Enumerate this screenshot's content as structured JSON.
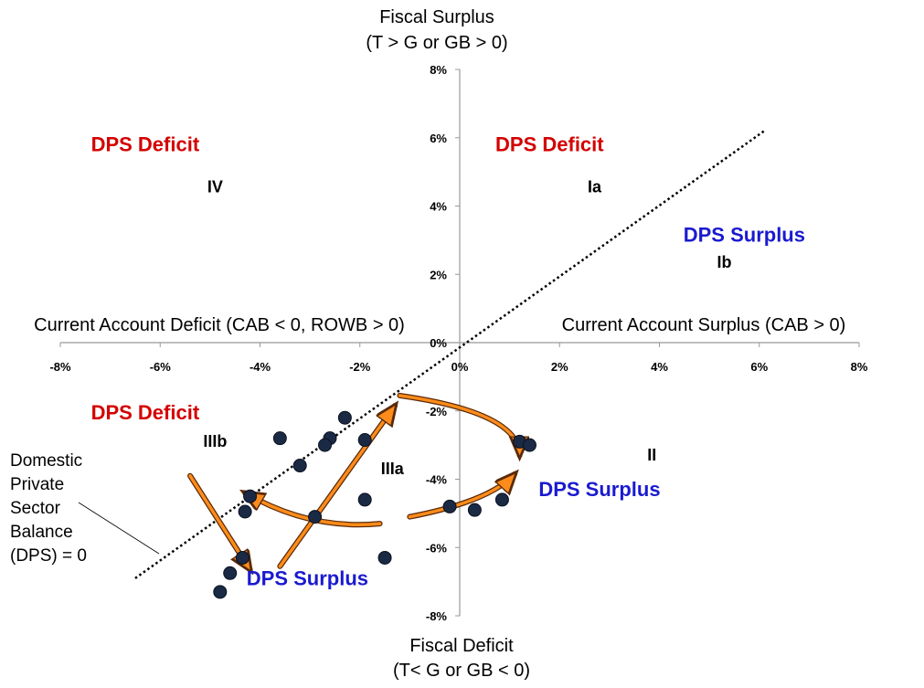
{
  "chart_data": {
    "type": "scatter",
    "title": "",
    "x_axis": {
      "range": [
        -8,
        8
      ],
      "ticks": [
        "-8%",
        "-6%",
        "-4%",
        "-2%",
        "0%",
        "2%",
        "4%",
        "6%",
        "8%"
      ],
      "label_left": "Current Account Deficit (CAB < 0, ROWB > 0)",
      "label_right": "Current Account Surplus (CAB > 0)"
    },
    "y_axis": {
      "range": [
        -8,
        8
      ],
      "ticks": [
        "8%",
        "6%",
        "4%",
        "2%",
        "0%",
        "-2%",
        "-4%",
        "-6%",
        "-8%"
      ],
      "label_top_line1": "Fiscal Surplus",
      "label_top_line2": "(T > G or GB > 0)",
      "label_bottom_line1": "Fiscal Deficit",
      "label_bottom_line2": "(T< G or GB < 0)"
    },
    "dps_line": {
      "x": [
        -6.5,
        6.1
      ],
      "y": [
        -6.9,
        6.2
      ],
      "style": "dotted",
      "label_lines": [
        "Domestic",
        "Private",
        "Sector",
        "Balance",
        "(DPS) = 0"
      ]
    },
    "points": [
      {
        "x": -2.3,
        "y": -2.2
      },
      {
        "x": -3.6,
        "y": -2.8
      },
      {
        "x": -2.6,
        "y": -2.8
      },
      {
        "x": -2.7,
        "y": -3.0
      },
      {
        "x": -1.9,
        "y": -2.85
      },
      {
        "x": -3.2,
        "y": -3.6
      },
      {
        "x": -4.2,
        "y": -4.5
      },
      {
        "x": -4.3,
        "y": -4.95
      },
      {
        "x": -1.9,
        "y": -4.6
      },
      {
        "x": -2.9,
        "y": -5.1
      },
      {
        "x": -4.35,
        "y": -6.3
      },
      {
        "x": -4.6,
        "y": -6.75
      },
      {
        "x": -1.5,
        "y": -6.3
      },
      {
        "x": -4.8,
        "y": -7.3
      },
      {
        "x": 1.2,
        "y": -2.9
      },
      {
        "x": 1.4,
        "y": -3.0
      },
      {
        "x": -0.2,
        "y": -4.8
      },
      {
        "x": 0.3,
        "y": -4.9
      },
      {
        "x": 0.85,
        "y": -4.6
      }
    ],
    "regions": [
      {
        "label": "DPS Deficit",
        "color": "#d40000",
        "x": -6.3,
        "y": 5.6
      },
      {
        "label": "DPS Deficit",
        "color": "#d40000",
        "x": 1.8,
        "y": 5.6
      },
      {
        "label": "DPS Surplus",
        "color": "#1a1ad0",
        "x": 5.7,
        "y": 2.95
      },
      {
        "label": "DPS Deficit",
        "color": "#d40000",
        "x": -6.3,
        "y": -2.25
      },
      {
        "label": "DPS Surplus",
        "color": "#1a1ad0",
        "x": 2.8,
        "y": -4.5
      },
      {
        "label": "DPS Surplus",
        "color": "#1a1ad0",
        "x": -3.05,
        "y": -7.1
      }
    ],
    "quadrants": [
      {
        "label": "IV",
        "x": -4.9,
        "y": 4.4
      },
      {
        "label": "Ia",
        "x": 2.7,
        "y": 4.4
      },
      {
        "label": "Ib",
        "x": 5.3,
        "y": 2.2
      },
      {
        "label": "IIIb",
        "x": -4.9,
        "y": -3.05
      },
      {
        "label": "IIIa",
        "x": -1.35,
        "y": -3.85
      },
      {
        "label": "II",
        "x": 3.85,
        "y": -3.45
      }
    ],
    "arrows": [
      {
        "path": [
          [
            -5.4,
            -3.9
          ],
          [
            -4.2,
            -6.65
          ]
        ]
      },
      {
        "path": [
          [
            -3.6,
            -6.55
          ],
          [
            -1.3,
            -1.85
          ]
        ]
      },
      {
        "path": [
          [
            -1.6,
            -5.3
          ],
          [
            -3.0,
            -5.5
          ],
          [
            -4.3,
            -4.4
          ]
        ]
      },
      {
        "path": [
          [
            -1.2,
            -1.55
          ],
          [
            1.2,
            -2.05
          ],
          [
            1.2,
            -3.3
          ]
        ]
      },
      {
        "path": [
          [
            -1.0,
            -5.1
          ],
          [
            0.6,
            -4.65
          ],
          [
            1.1,
            -3.85
          ]
        ]
      }
    ],
    "colors": {
      "point": "#1b2a44",
      "arrow_fill": "#ff8c1a",
      "arrow_stroke": "#5a2a0a",
      "axis": "#999999"
    }
  }
}
